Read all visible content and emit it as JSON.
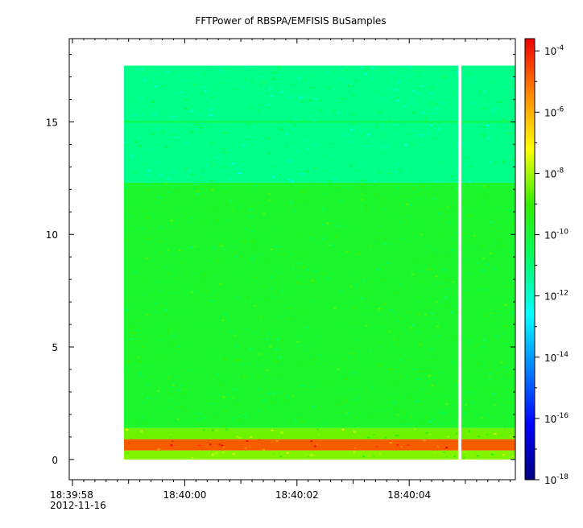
{
  "chart_data": {
    "type": "heatmap",
    "title": "FFTPower of RBSPA/EMFISIS  BuSamples",
    "xlabel": "",
    "ylabel": "",
    "x_start": "18:39:58",
    "x_start_date": "2012-11-16",
    "x_ticks": [
      "18:40:00",
      "18:40:02",
      "18:40:04"
    ],
    "y_ticks": [
      0,
      5,
      10,
      15
    ],
    "ylim": [
      -0.9,
      18.7
    ],
    "data_y_range": [
      0,
      17.5
    ],
    "colorbar": {
      "scale": "log",
      "min_exp": -18,
      "max_exp": -3.6,
      "ticks": [
        {
          "base": "10",
          "exp": "-4"
        },
        {
          "base": "10",
          "exp": "-6"
        },
        {
          "base": "10",
          "exp": "-8"
        },
        {
          "base": "10",
          "exp": "-10"
        },
        {
          "base": "10",
          "exp": "-12"
        },
        {
          "base": "10",
          "exp": "-14"
        },
        {
          "base": "10",
          "exp": "-16"
        },
        {
          "base": "10",
          "exp": "-18"
        }
      ]
    },
    "bands": [
      {
        "from": 0.0,
        "to": 0.4,
        "level_exp": -8.3
      },
      {
        "from": 0.4,
        "to": 0.9,
        "level_exp": -4.8
      },
      {
        "from": 0.9,
        "to": 1.4,
        "level_exp": -8.5
      },
      {
        "from": 1.4,
        "to": 12.3,
        "level_exp": -9.8
      },
      {
        "from": 12.3,
        "to": 17.5,
        "level_exp": -11.2
      }
    ],
    "line_feature": {
      "y": 15.0,
      "level_exp": -10.2
    },
    "data_gap": {
      "x": "18:40:04.9"
    },
    "grid": false,
    "legend": "none"
  }
}
